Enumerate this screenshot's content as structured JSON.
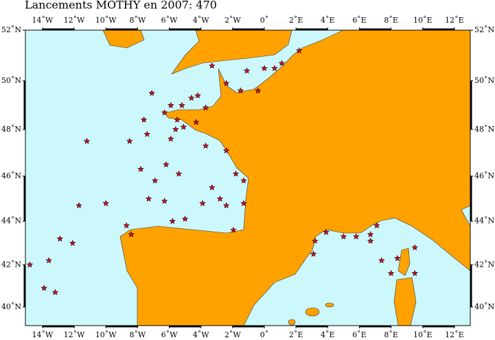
{
  "map": {
    "title": "Lancements MOTHY en 2007: 470",
    "xlim": [
      -15.08,
      13.0
    ],
    "ylim": [
      39.1,
      52.0
    ],
    "projection": "mercator",
    "sea_color": "#ccf8fb",
    "land_color": "#ffa200",
    "marker_color": "#c8102e",
    "lon_ticks": [
      {
        "value": -14,
        "label": "14˚W"
      },
      {
        "value": -12,
        "label": "12˚W"
      },
      {
        "value": -10,
        "label": "10˚W"
      },
      {
        "value": -8,
        "label": "8˚W"
      },
      {
        "value": -6,
        "label": "6˚W"
      },
      {
        "value": -4,
        "label": "4˚W"
      },
      {
        "value": -2,
        "label": "2˚W"
      },
      {
        "value": 0,
        "label": "0˚"
      },
      {
        "value": 2,
        "label": "2˚E"
      },
      {
        "value": 4,
        "label": "4˚E"
      },
      {
        "value": 6,
        "label": "6˚E"
      },
      {
        "value": 8,
        "label": "8˚E"
      },
      {
        "value": 10,
        "label": "10˚E"
      },
      {
        "value": 12,
        "label": "12˚E"
      }
    ],
    "lat_ticks": [
      {
        "value": 40,
        "label": "40˚N"
      },
      {
        "value": 42,
        "label": "42˚N"
      },
      {
        "value": 44,
        "label": "44˚N"
      },
      {
        "value": 46,
        "label": "46˚N"
      },
      {
        "value": 48,
        "label": "48˚N"
      },
      {
        "value": 50,
        "label": "50˚N"
      },
      {
        "value": 52,
        "label": "52˚N"
      }
    ],
    "launches": {
      "lon": [
        -14.8,
        -13.9,
        -13.2,
        -13.6,
        -12.9,
        -12.1,
        -11.7,
        -11.2,
        -10.0,
        -8.5,
        -7.1,
        -7.6,
        -7.4,
        -7.8,
        -6.9,
        -7.3,
        -6.2,
        -5.4,
        -6.3,
        -5.8,
        -5.0,
        -8.7,
        -8.4,
        -6.3,
        -5.9,
        -5.6,
        -5.2,
        -4.6,
        -4.2,
        -3.7,
        -4.3,
        -3.7,
        -3.3,
        -3.9,
        -2.8,
        -2.4,
        -1.95,
        -2.4,
        -1.8,
        -1.3,
        -1.3,
        -3.3,
        -2.4,
        -1.5,
        -1.1,
        -0.4,
        0.0,
        0.65,
        1.1,
        2.2,
        3.2,
        3.9,
        5.0,
        5.8,
        6.7,
        7.1,
        7.4,
        8.0,
        8.4,
        9.5,
        9.5,
        6.7,
        3.1,
        -5.5,
        -5.1,
        -5.9
      ],
      "lat": [
        42.0,
        40.9,
        40.7,
        42.2,
        43.2,
        43.0,
        44.7,
        47.5,
        44.8,
        47.5,
        49.5,
        48.4,
        47.8,
        46.3,
        45.8,
        45.0,
        46.5,
        46.1,
        44.9,
        44.0,
        44.1,
        43.8,
        43.4,
        48.7,
        49.0,
        48.0,
        49.0,
        49.3,
        49.4,
        48.9,
        48.3,
        47.3,
        45.5,
        44.8,
        45.0,
        44.7,
        43.6,
        47.1,
        46.1,
        45.8,
        44.8,
        50.6,
        49.9,
        49.6,
        50.4,
        49.6,
        50.5,
        50.5,
        50.7,
        51.2,
        43.1,
        43.5,
        43.3,
        43.3,
        43.1,
        43.8,
        42.2,
        41.6,
        42.3,
        42.8,
        41.6,
        43.4,
        42.5,
        48.4,
        48.1,
        47.6
      ]
    }
  }
}
